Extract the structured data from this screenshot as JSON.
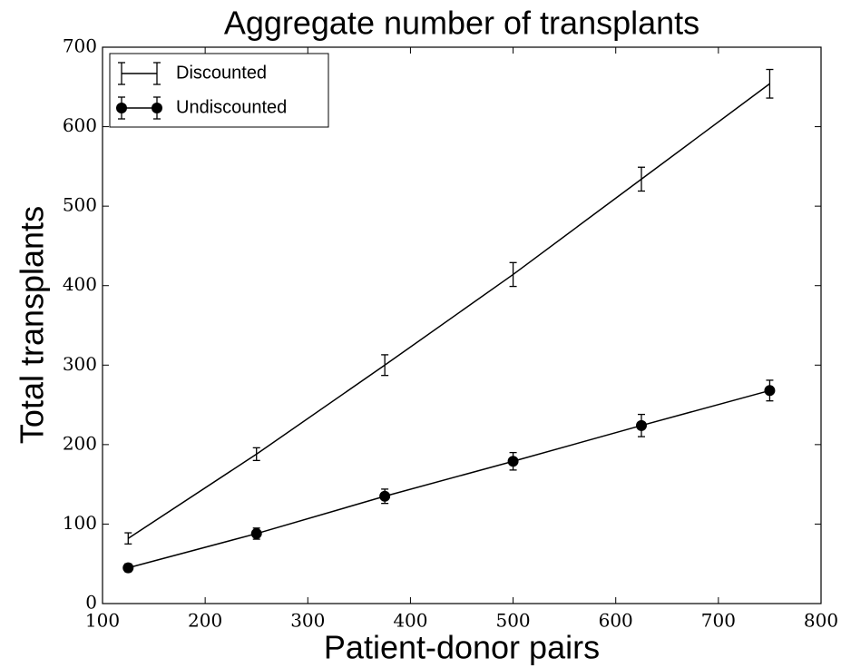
{
  "chart_data": {
    "type": "line",
    "title": "Aggregate number of transplants",
    "xlabel": "Patient-donor pairs",
    "ylabel": "Total transplants",
    "x": [
      125,
      250,
      375,
      500,
      625,
      750
    ],
    "series": [
      {
        "name": "Discounted",
        "color": "#000000",
        "marker": "none",
        "values": [
          82,
          188,
          300,
          414,
          534,
          654
        ],
        "errors": [
          7,
          8,
          13,
          15,
          15,
          18
        ]
      },
      {
        "name": "Undiscounted",
        "color": "#000000",
        "marker": "circle",
        "values": [
          45,
          88,
          135,
          179,
          224,
          268
        ],
        "errors": [
          5,
          7,
          9,
          11,
          14,
          13
        ]
      }
    ],
    "xlim": [
      100,
      800
    ],
    "xticks": [
      100,
      200,
      300,
      400,
      500,
      600,
      700,
      800
    ],
    "ylim": [
      0,
      700
    ],
    "yticks": [
      0,
      100,
      200,
      300,
      400,
      500,
      600,
      700
    ],
    "grid": false,
    "legend": "upper left"
  }
}
